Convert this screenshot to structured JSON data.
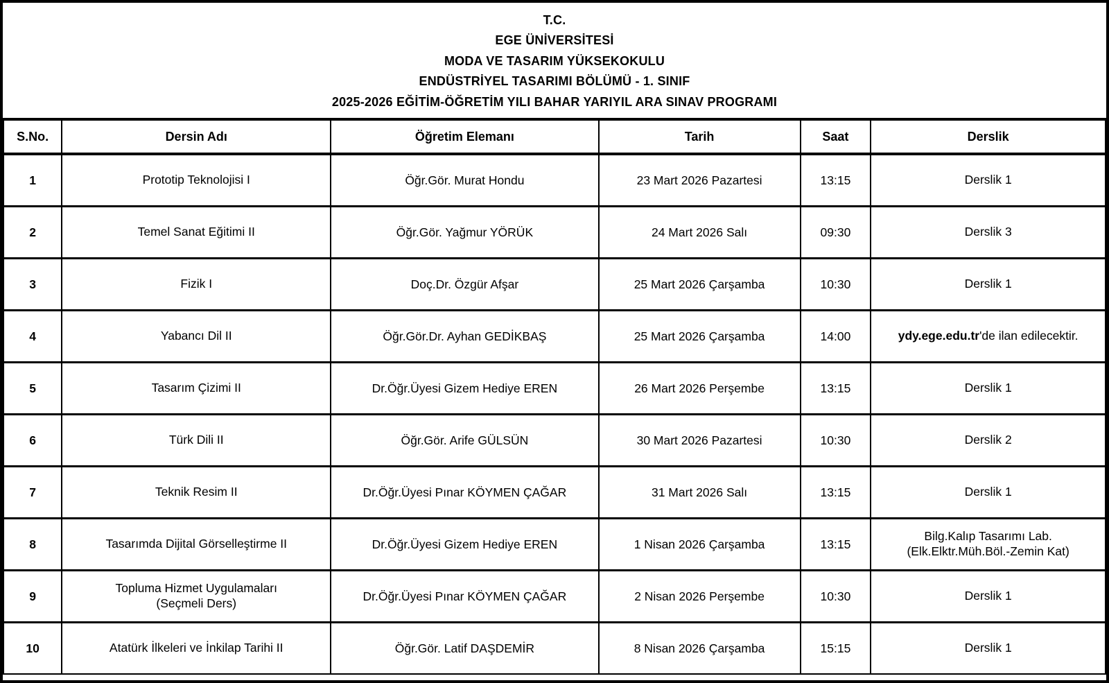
{
  "title": {
    "lines": [
      "T.C.",
      "EGE ÜNİVERSİTESİ",
      "MODA VE TASARIM YÜKSEKOKULU",
      "ENDÜSTRİYEL TASARIMI BÖLÜMÜ - 1. SINIF",
      "2025-2026 EĞİTİM-ÖĞRETİM YILI BAHAR YARIYIL ARA SINAV PROGRAMI"
    ]
  },
  "table": {
    "columns": [
      "S.No.",
      "Dersin Adı",
      "Öğretim Elemanı",
      "Tarih",
      "Saat",
      "Derslik"
    ],
    "rows": [
      {
        "no": "1",
        "course": "Prototip Teknolojisi I",
        "instructor": "Öğr.Gör. Murat Hondu",
        "date": "23 Mart 2026 Pazartesi",
        "time": "13:15",
        "room": "Derslik 1"
      },
      {
        "no": "2",
        "course": "Temel Sanat Eğitimi II",
        "instructor": "Öğr.Gör. Yağmur YÖRÜK",
        "date": "24 Mart 2026 Salı",
        "time": "09:30",
        "room": "Derslik 3"
      },
      {
        "no": "3",
        "course": "Fizik I",
        "instructor": "Doç.Dr. Özgür Afşar",
        "date": "25 Mart 2026 Çarşamba",
        "time": "10:30",
        "room": "Derslik 1"
      },
      {
        "no": "4",
        "course": "Yabancı Dil II",
        "instructor": "Öğr.Gör.Dr. Ayhan GEDİKBAŞ",
        "date": "25 Mart 2026 Çarşamba",
        "time": "14:00",
        "room": "'de ilan edilecektir.",
        "room_bold_prefix": "ydy.ege.edu.tr"
      },
      {
        "no": "5",
        "course": "Tasarım Çizimi II",
        "instructor": "Dr.Öğr.Üyesi Gizem Hediye EREN",
        "date": "26 Mart 2026 Perşembe",
        "time": "13:15",
        "room": "Derslik 1"
      },
      {
        "no": "6",
        "course": "Türk Dili II",
        "instructor": "Öğr.Gör. Arife GÜLSÜN",
        "date": "30 Mart 2026 Pazartesi",
        "time": "10:30",
        "room": "Derslik 2"
      },
      {
        "no": "7",
        "course": "Teknik Resim II",
        "instructor": "Dr.Öğr.Üyesi Pınar KÖYMEN ÇAĞAR",
        "date": "31 Mart 2026 Salı",
        "time": "13:15",
        "room": "Derslik 1"
      },
      {
        "no": "8",
        "course": "Tasarımda Dijital Görselleştirme II",
        "instructor": "Dr.Öğr.Üyesi Gizem Hediye EREN",
        "date": "1 Nisan 2026 Çarşamba",
        "time": "13:15",
        "room": "Bilg.Kalıp Tasarımı Lab.\n(Elk.Elktr.Müh.Böl.-Zemin Kat)"
      },
      {
        "no": "9",
        "course": "Topluma Hizmet Uygulamaları\n(Seçmeli Ders)",
        "instructor": "Dr.Öğr.Üyesi Pınar KÖYMEN ÇAĞAR",
        "date": "2 Nisan 2026 Perşembe",
        "time": "10:30",
        "room": "Derslik 1"
      },
      {
        "no": "10",
        "course": "Atatürk İlkeleri ve İnkilap Tarihi II",
        "instructor": "Öğr.Gör. Latif DAŞDEMİR",
        "date": "8 Nisan 2026 Çarşamba",
        "time": "15:15",
        "room": "Derslik 1"
      }
    ]
  },
  "colors": {
    "border": "#000000",
    "background": "#ffffff",
    "text": "#000000"
  }
}
